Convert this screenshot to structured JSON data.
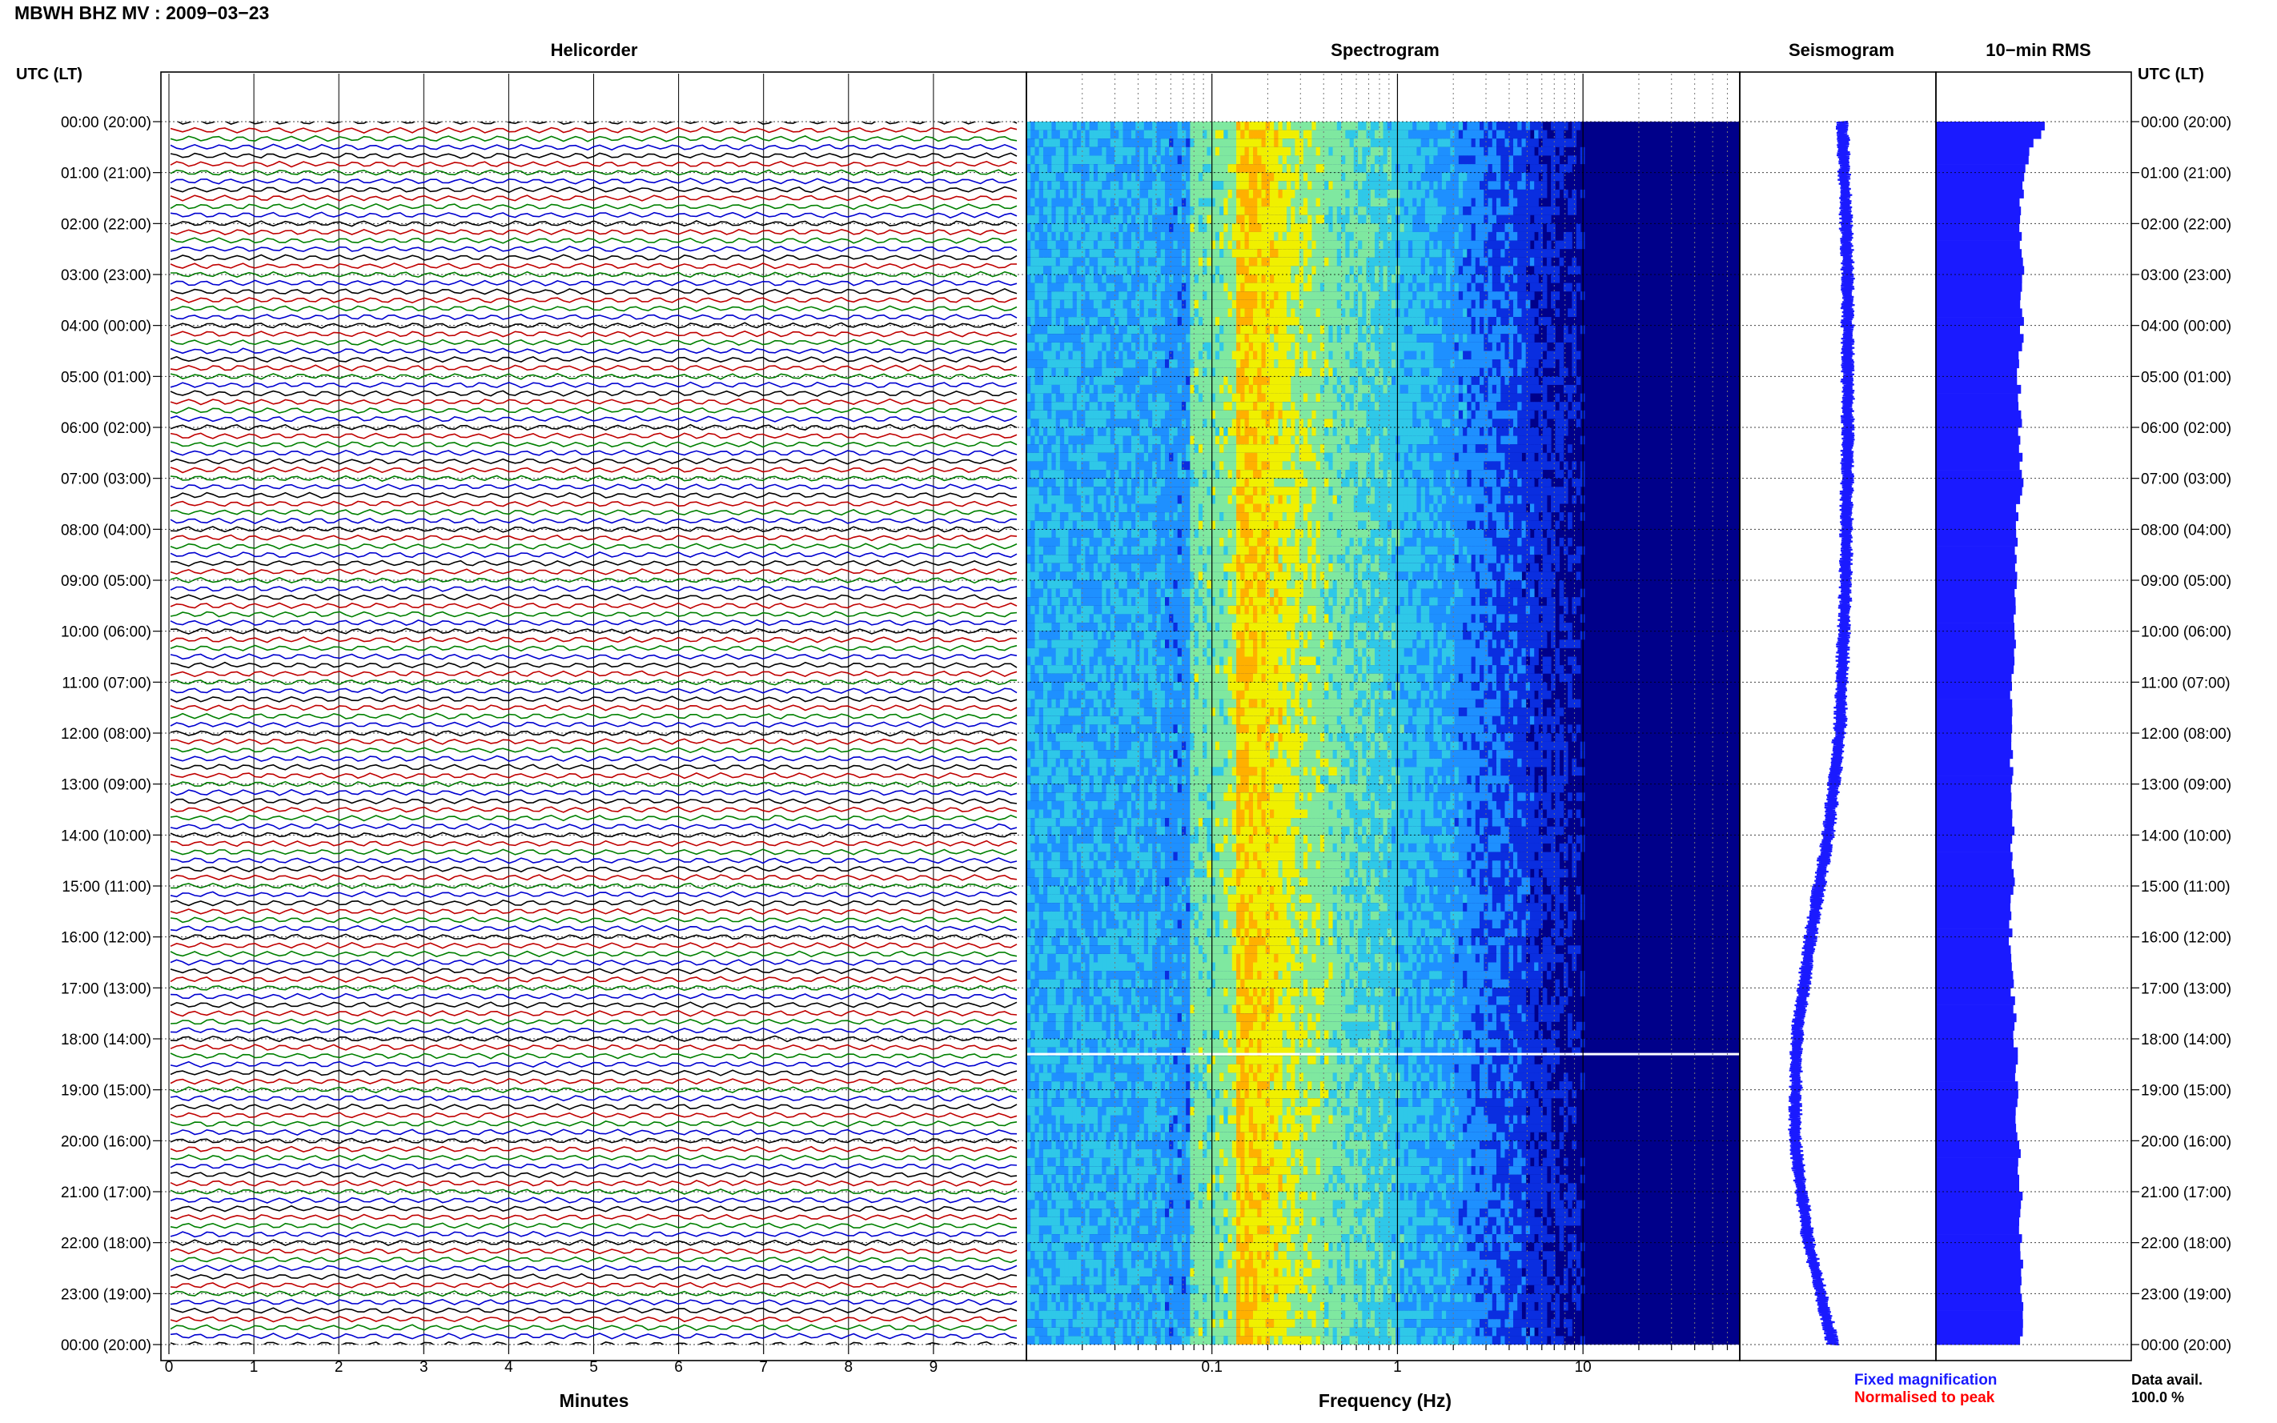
{
  "header": {
    "title": "MBWH BHZ MV : 2009−03−23",
    "utc_label": "UTC (LT)",
    "utc_label_right": "UTC (LT)"
  },
  "panels": {
    "helicorder": "Helicorder",
    "spectrogram": "Spectrogram",
    "seismogram": "Seismogram",
    "rms": "10−min RMS"
  },
  "chart_data": [
    {
      "type": "line",
      "title": "Helicorder",
      "xlabel": "Minutes",
      "ylabel": "UTC (LT)",
      "x_ticks": [
        "0",
        "1",
        "2",
        "3",
        "4",
        "5",
        "6",
        "7",
        "8",
        "9"
      ],
      "xlim": [
        0,
        10
      ],
      "row_minutes": 10,
      "rows_per_day": 144,
      "trace_colors": [
        "#000000",
        "#c00000",
        "#008000",
        "#0000d0"
      ],
      "time_labels": [
        "00:00 (20:00)",
        "01:00 (21:00)",
        "02:00 (22:00)",
        "03:00 (23:00)",
        "04:00 (00:00)",
        "05:00 (01:00)",
        "06:00 (02:00)",
        "07:00 (03:00)",
        "08:00 (04:00)",
        "09:00 (05:00)",
        "10:00 (06:00)",
        "11:00 (07:00)",
        "12:00 (08:00)",
        "13:00 (09:00)",
        "14:00 (10:00)",
        "15:00 (11:00)",
        "16:00 (12:00)",
        "17:00 (13:00)",
        "18:00 (14:00)",
        "19:00 (15:00)",
        "20:00 (16:00)",
        "21:00 (17:00)",
        "22:00 (18:00)",
        "23:00 (19:00)",
        "00:00 (20:00)"
      ]
    },
    {
      "type": "heatmap",
      "title": "Spectrogram",
      "xlabel": "Frequency (Hz)",
      "x_scale": "log",
      "x_ticks": [
        "0.1",
        "1",
        "10"
      ],
      "xlim": [
        0.01,
        70
      ],
      "colormap": [
        "#00008a",
        "#0a2ee0",
        "#1e90ff",
        "#2fc8e8",
        "#7fe8a0",
        "#f0f000",
        "#ffb000",
        "#ff3000"
      ],
      "peak_band_hz": [
        0.15,
        0.25
      ],
      "gap_hour_utc": 18.3
    },
    {
      "type": "line",
      "title": "Seismogram",
      "series_color": "#1a1aff",
      "profile_hours": [
        0,
        3,
        6,
        9,
        12,
        14,
        16,
        18,
        20,
        22,
        24
      ],
      "profile_offset": [
        0.05,
        0.1,
        0.1,
        0.08,
        0.02,
        -0.1,
        -0.28,
        -0.42,
        -0.44,
        -0.3,
        -0.05
      ],
      "legend": {
        "fixed": "Fixed magnification",
        "normalised": "Normalised to peak"
      },
      "legend_colors": {
        "fixed": "#1a1aff",
        "normalised": "#ff0000"
      }
    },
    {
      "type": "bar",
      "title": "10−min RMS",
      "orientation": "horizontal",
      "bar_color": "#1a1aff",
      "profile_hours": [
        0,
        1,
        2,
        3,
        4,
        5,
        6,
        7,
        8,
        9,
        10,
        11,
        12,
        13,
        14,
        15,
        16,
        17,
        18,
        19,
        20,
        21,
        22,
        23,
        24
      ],
      "profile_values": [
        0.95,
        0.72,
        0.7,
        0.72,
        0.72,
        0.68,
        0.7,
        0.72,
        0.65,
        0.66,
        0.64,
        0.62,
        0.62,
        0.6,
        0.62,
        0.62,
        0.6,
        0.62,
        0.65,
        0.66,
        0.68,
        0.7,
        0.7,
        0.72,
        0.72
      ]
    }
  ],
  "footer": {
    "data_avail_label": "Data avail.",
    "data_avail_value": "100.0 %"
  }
}
